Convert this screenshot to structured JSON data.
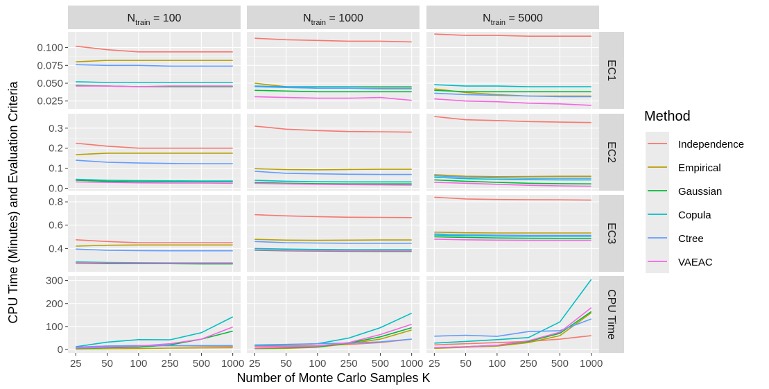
{
  "chart_data": {
    "type": "line",
    "x": [
      "25",
      "50",
      "100",
      "250",
      "500",
      "1000"
    ],
    "xlabel": "Number of Monte Carlo Samples K",
    "ylabel": "CPU Time (Minutes) and Evaluation Criteria",
    "columns": [
      {
        "base": "N",
        "sub": "train",
        "rest": " = 100"
      },
      {
        "base": "N",
        "sub": "train",
        "rest": " = 1000"
      },
      {
        "base": "N",
        "sub": "train",
        "rest": " = 5000"
      }
    ],
    "rows": [
      {
        "label": "EC1",
        "ylim": [
          0.014,
          0.122
        ],
        "ticks": [
          "0.025",
          "0.050",
          "0.075",
          "0.100"
        ],
        "tick_values": [
          0.025,
          0.05,
          0.075,
          0.1
        ]
      },
      {
        "label": "EC2",
        "ylim": [
          -0.012,
          0.372
        ],
        "ticks": [
          "0.0",
          "0.1",
          "0.2",
          "0.3"
        ],
        "tick_values": [
          0,
          0.1,
          0.2,
          0.3
        ]
      },
      {
        "label": "EC3",
        "ylim": [
          0.2,
          0.86
        ],
        "ticks": [
          "0.4",
          "0.6",
          "0.8"
        ],
        "tick_values": [
          0.4,
          0.6,
          0.8
        ]
      },
      {
        "label": "CPU Time",
        "ylim": [
          -15,
          320
        ],
        "ticks": [
          "0",
          "100",
          "200",
          "300"
        ],
        "tick_values": [
          0,
          100,
          200,
          300
        ]
      }
    ],
    "legend": {
      "title": "Method",
      "position": "right"
    },
    "series": [
      {
        "name": "Independence",
        "color": "#F8766D",
        "panels": [
          [
            [
              0.102,
              0.097,
              0.094,
              0.094,
              0.094,
              0.094
            ],
            [
              0.113,
              0.111,
              0.11,
              0.109,
              0.109,
              0.108
            ],
            [
              0.119,
              0.117,
              0.117,
              0.116,
              0.116,
              0.116
            ]
          ],
          [
            [
              0.225,
              0.21,
              0.2,
              0.2,
              0.2,
              0.2
            ],
            [
              0.31,
              0.295,
              0.288,
              0.283,
              0.282,
              0.28
            ],
            [
              0.358,
              0.342,
              0.338,
              0.333,
              0.33,
              0.328
            ]
          ],
          [
            [
              0.475,
              0.46,
              0.45,
              0.45,
              0.45,
              0.45
            ],
            [
              0.69,
              0.68,
              0.673,
              0.668,
              0.667,
              0.665
            ],
            [
              0.84,
              0.825,
              0.82,
              0.818,
              0.817,
              0.815
            ]
          ],
          [
            [
              10,
              15,
              17,
              17,
              15,
              14
            ],
            [
              14,
              15,
              17,
              22,
              30,
              45
            ],
            [
              20,
              25,
              30,
              35,
              45,
              60
            ]
          ]
        ]
      },
      {
        "name": "Empirical",
        "color": "#B79F00",
        "panels": [
          [
            [
              0.08,
              0.082,
              0.082,
              0.082,
              0.082,
              0.082
            ],
            [
              0.05,
              0.045,
              0.043,
              0.043,
              0.043,
              0.043
            ],
            [
              0.042,
              0.037,
              0.034,
              0.032,
              0.032,
              0.032
            ]
          ],
          [
            [
              0.168,
              0.175,
              0.175,
              0.175,
              0.175,
              0.175
            ],
            [
              0.098,
              0.093,
              0.092,
              0.094,
              0.095,
              0.095
            ],
            [
              0.068,
              0.06,
              0.058,
              0.059,
              0.06,
              0.06
            ]
          ],
          [
            [
              0.42,
              0.428,
              0.43,
              0.43,
              0.43,
              0.43
            ],
            [
              0.478,
              0.472,
              0.47,
              0.472,
              0.473,
              0.473
            ],
            [
              0.54,
              0.535,
              0.533,
              0.533,
              0.533,
              0.533
            ]
          ],
          [
            [
              2,
              3,
              4,
              6,
              7,
              8
            ],
            [
              3,
              5,
              10,
              25,
              45,
              85
            ],
            [
              5,
              10,
              15,
              30,
              60,
              160
            ]
          ]
        ]
      },
      {
        "name": "Gaussian",
        "color": "#00BA38",
        "panels": [
          [
            [
              0.047,
              0.046,
              0.045,
              0.045,
              0.045,
              0.045
            ],
            [
              0.04,
              0.039,
              0.038,
              0.038,
              0.038,
              0.038
            ],
            [
              0.04,
              0.038,
              0.038,
              0.038,
              0.038,
              0.038
            ]
          ],
          [
            [
              0.04,
              0.035,
              0.033,
              0.033,
              0.033,
              0.033
            ],
            [
              0.03,
              0.025,
              0.023,
              0.022,
              0.022,
              0.022
            ],
            [
              0.042,
              0.035,
              0.03,
              0.025,
              0.023,
              0.022
            ]
          ],
          [
            [
              0.275,
              0.27,
              0.27,
              0.27,
              0.268,
              0.268
            ],
            [
              0.385,
              0.38,
              0.378,
              0.376,
              0.375,
              0.375
            ],
            [
              0.5,
              0.495,
              0.49,
              0.488,
              0.487,
              0.487
            ]
          ],
          [
            [
              5,
              8,
              10,
              20,
              45,
              80
            ],
            [
              5,
              8,
              12,
              28,
              55,
              95
            ],
            [
              8,
              12,
              18,
              35,
              70,
              165
            ]
          ]
        ]
      },
      {
        "name": "Copula",
        "color": "#00BFC4",
        "panels": [
          [
            [
              0.052,
              0.051,
              0.051,
              0.051,
              0.051,
              0.051
            ],
            [
              0.046,
              0.045,
              0.045,
              0.045,
              0.045,
              0.045
            ],
            [
              0.048,
              0.046,
              0.046,
              0.045,
              0.045,
              0.045
            ]
          ],
          [
            [
              0.045,
              0.04,
              0.038,
              0.037,
              0.036,
              0.036
            ],
            [
              0.04,
              0.035,
              0.033,
              0.032,
              0.032,
              0.032
            ],
            [
              0.055,
              0.048,
              0.045,
              0.043,
              0.042,
              0.042
            ]
          ],
          [
            [
              0.285,
              0.28,
              0.278,
              0.276,
              0.276,
              0.276
            ],
            [
              0.4,
              0.395,
              0.392,
              0.39,
              0.39,
              0.39
            ],
            [
              0.515,
              0.51,
              0.507,
              0.505,
              0.505,
              0.505
            ]
          ],
          [
            [
              12,
              32,
              43,
              42,
              73,
              142
            ],
            [
              18,
              20,
              25,
              50,
              95,
              158
            ],
            [
              28,
              35,
              43,
              52,
              120,
              305
            ]
          ]
        ]
      },
      {
        "name": "Ctree",
        "color": "#619CFF",
        "panels": [
          [
            [
              0.076,
              0.075,
              0.075,
              0.074,
              0.074,
              0.074
            ],
            [
              0.045,
              0.044,
              0.043,
              0.043,
              0.042,
              0.042
            ],
            [
              0.036,
              0.034,
              0.033,
              0.032,
              0.031,
              0.031
            ]
          ],
          [
            [
              0.14,
              0.13,
              0.126,
              0.124,
              0.123,
              0.123
            ],
            [
              0.085,
              0.075,
              0.072,
              0.07,
              0.069,
              0.069
            ],
            [
              0.062,
              0.055,
              0.052,
              0.05,
              0.05,
              0.05
            ]
          ],
          [
            [
              0.395,
              0.385,
              0.382,
              0.38,
              0.38,
              0.38
            ],
            [
              0.46,
              0.45,
              0.447,
              0.445,
              0.445,
              0.445
            ],
            [
              0.525,
              0.518,
              0.515,
              0.513,
              0.513,
              0.513
            ]
          ],
          [
            [
              10,
              15,
              17,
              17,
              17,
              17
            ],
            [
              20,
              22,
              25,
              28,
              33,
              45
            ],
            [
              58,
              62,
              57,
              78,
              82,
              133
            ]
          ]
        ]
      },
      {
        "name": "VAEAC",
        "color": "#F564E3",
        "panels": [
          [
            [
              0.046,
              0.046,
              0.045,
              0.046,
              0.046,
              0.046
            ],
            [
              0.031,
              0.03,
              0.029,
              0.029,
              0.03,
              0.026
            ],
            [
              0.028,
              0.025,
              0.024,
              0.022,
              0.021,
              0.019
            ]
          ],
          [
            [
              0.032,
              0.029,
              0.027,
              0.026,
              0.026,
              0.025
            ],
            [
              0.025,
              0.022,
              0.02,
              0.018,
              0.017,
              0.016
            ],
            [
              0.03,
              0.025,
              0.02,
              0.015,
              0.012,
              0.01
            ]
          ],
          [
            [
              0.28,
              0.276,
              0.275,
              0.274,
              0.275,
              0.275
            ],
            [
              0.388,
              0.384,
              0.382,
              0.38,
              0.38,
              0.38
            ],
            [
              0.48,
              0.475,
              0.472,
              0.47,
              0.47,
              0.47
            ]
          ],
          [
            [
              6,
              10,
              15,
              25,
              45,
              98
            ],
            [
              6,
              10,
              15,
              30,
              65,
              110
            ],
            [
              8,
              12,
              18,
              38,
              75,
              182
            ]
          ]
        ]
      }
    ]
  }
}
